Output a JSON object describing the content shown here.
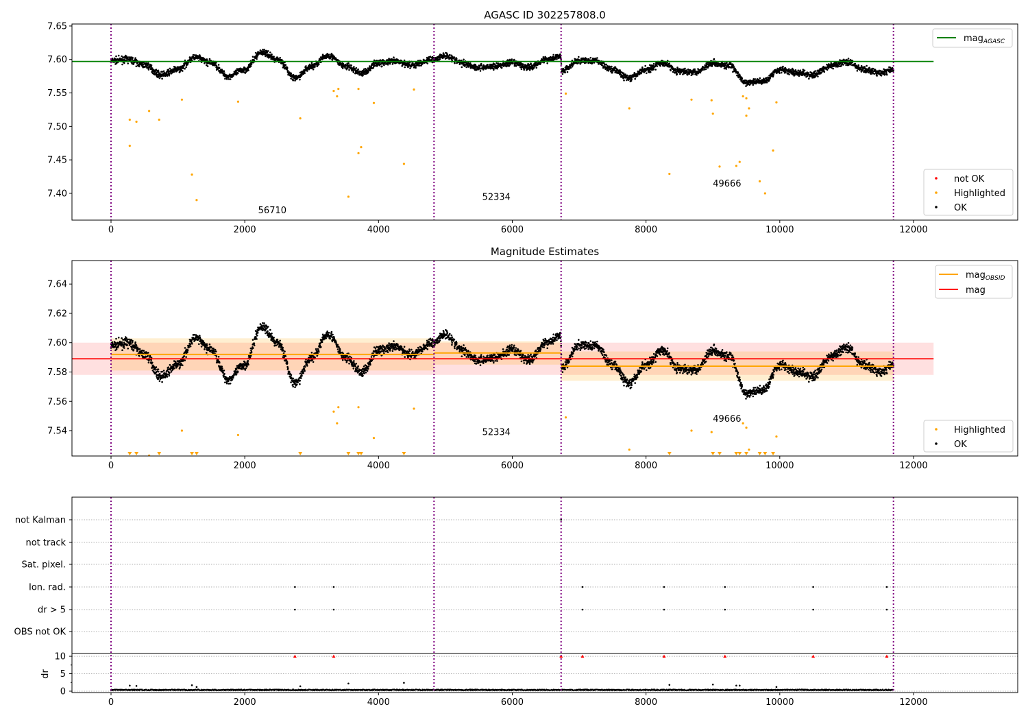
{
  "chart_data": [
    {
      "type": "scatter",
      "title": "AGASC ID 302257808.0",
      "xlim": [
        -584,
        13558
      ],
      "ylim": [
        7.36,
        7.653
      ],
      "xticks": [
        "0",
        "2000",
        "4000",
        "6000",
        "8000",
        "10000",
        "12000"
      ],
      "xtick_values": [
        0,
        2000,
        4000,
        6000,
        8000,
        10000,
        12000
      ],
      "yticks": [
        "7.40",
        "7.45",
        "7.50",
        "7.55",
        "7.60",
        "7.65"
      ],
      "ytick_values": [
        7.4,
        7.45,
        7.5,
        7.55,
        7.6,
        7.65
      ],
      "legend_top": {
        "base": "mag",
        "sub": "AGASC"
      },
      "legend_bottom": [
        "not OK",
        "Highlighted",
        "OK"
      ],
      "mag_agasc": 7.597,
      "mag_agasc_xrange": [
        -584,
        12300
      ]
    },
    {
      "type": "scatter",
      "title": "Magnitude Estimates",
      "xlim": [
        -584,
        13558
      ],
      "ylim": [
        7.5227,
        7.656
      ],
      "xticks": [
        "0",
        "2000",
        "4000",
        "6000",
        "8000",
        "10000",
        "12000"
      ],
      "xtick_values": [
        0,
        2000,
        4000,
        6000,
        8000,
        10000,
        12000
      ],
      "yticks": [
        "7.54",
        "7.56",
        "7.58",
        "7.60",
        "7.62",
        "7.64"
      ],
      "ytick_values": [
        7.54,
        7.56,
        7.58,
        7.6,
        7.62,
        7.64
      ],
      "legend_top": [
        {
          "base": "mag",
          "sub": "OBSID"
        },
        {
          "base": "mag",
          "sub": ""
        }
      ],
      "legend_bottom": [
        "Highlighted",
        "OK"
      ],
      "mag": 7.589,
      "mag_err": 0.011,
      "mag_xrange": [
        -584,
        12300
      ],
      "obsid_mags": [
        {
          "x0": 0,
          "x1": 4830,
          "mag": 7.592,
          "err": 0.011
        },
        {
          "x0": 4830,
          "x1": 6730,
          "mag": 7.593,
          "err": 0.008
        },
        {
          "x0": 6730,
          "x1": 11700,
          "mag": 7.584,
          "err": 0.01
        }
      ]
    },
    {
      "type": "scatter",
      "title": "",
      "xlim": [
        -584,
        13558
      ],
      "flag_labels": [
        "not Kalman",
        "not track",
        "Sat. pixel.",
        "Ion. rad.",
        "dr > 5",
        "OBS not OK"
      ],
      "dr_ylabel": "dr",
      "dr_ylim": [
        -0.4,
        10.8
      ],
      "dr_yticks": [
        "0",
        "5",
        "10"
      ],
      "dr_ytick_values": [
        0,
        5,
        10
      ],
      "xticks": [
        "0",
        "2000",
        "4000",
        "6000",
        "8000",
        "10000",
        "12000"
      ],
      "xtick_values": [
        0,
        2000,
        4000,
        6000,
        8000,
        10000,
        12000
      ],
      "flags": {
        "not Kalman": [
          6730
        ],
        "Ion. rad.": [
          2750,
          3330,
          7050,
          8270,
          9180,
          10500,
          11600
        ],
        "dr > 5": [
          2750,
          3330,
          7050,
          8270,
          9180,
          10500,
          11600
        ]
      },
      "dr_red": [
        2750,
        3330,
        6730,
        7050,
        8270,
        9180,
        10500,
        11600
      ],
      "dr_spikes": [
        [
          280,
          1.6
        ],
        [
          380,
          1.5
        ],
        [
          1210,
          1.7
        ],
        [
          1280,
          1.2
        ],
        [
          2830,
          1.4
        ],
        [
          3550,
          2.2
        ],
        [
          4380,
          2.4
        ],
        [
          8350,
          1.8
        ],
        [
          9000,
          1.9
        ],
        [
          9350,
          1.6
        ],
        [
          9400,
          1.6
        ],
        [
          9950,
          1.2
        ]
      ]
    }
  ],
  "obsid_boundaries": [
    0,
    4830,
    6730,
    11700
  ],
  "obsid_labels": [
    {
      "text": "56710",
      "x": 2200,
      "y_top": 7.37,
      "y_mid": 7.527
    },
    {
      "text": "52334",
      "x": 5550,
      "y_top": 7.39,
      "y_mid": 7.537
    },
    {
      "text": "49666",
      "x": 9000,
      "y_top": 7.41,
      "y_mid": 7.546
    }
  ],
  "trend": [
    [
      0,
      7.598
    ],
    [
      250,
      7.6
    ],
    [
      500,
      7.592
    ],
    [
      750,
      7.577
    ],
    [
      1000,
      7.585
    ],
    [
      1250,
      7.603
    ],
    [
      1500,
      7.595
    ],
    [
      1750,
      7.575
    ],
    [
      2000,
      7.585
    ],
    [
      2250,
      7.611
    ],
    [
      2500,
      7.6
    ],
    [
      2750,
      7.572
    ],
    [
      3000,
      7.59
    ],
    [
      3250,
      7.606
    ],
    [
      3500,
      7.59
    ],
    [
      3750,
      7.58
    ],
    [
      4000,
      7.595
    ],
    [
      4250,
      7.597
    ],
    [
      4500,
      7.592
    ],
    [
      4820,
      7.6
    ],
    [
      5000,
      7.606
    ],
    [
      5250,
      7.595
    ],
    [
      5500,
      7.588
    ],
    [
      5750,
      7.59
    ],
    [
      6000,
      7.595
    ],
    [
      6250,
      7.588
    ],
    [
      6500,
      7.6
    ],
    [
      6720,
      7.605
    ],
    [
      6740,
      7.583
    ],
    [
      7000,
      7.598
    ],
    [
      7250,
      7.598
    ],
    [
      7500,
      7.585
    ],
    [
      7750,
      7.572
    ],
    [
      8000,
      7.585
    ],
    [
      8250,
      7.595
    ],
    [
      8500,
      7.582
    ],
    [
      8750,
      7.582
    ],
    [
      9000,
      7.595
    ],
    [
      9250,
      7.59
    ],
    [
      9500,
      7.565
    ],
    [
      9750,
      7.568
    ],
    [
      10000,
      7.585
    ],
    [
      10250,
      7.58
    ],
    [
      10500,
      7.577
    ],
    [
      10750,
      7.59
    ],
    [
      11000,
      7.597
    ],
    [
      11250,
      7.585
    ],
    [
      11500,
      7.58
    ],
    [
      11700,
      7.585
    ]
  ],
  "highlighted": [
    [
      280,
      7.51
    ],
    [
      280,
      7.471
    ],
    [
      380,
      7.507
    ],
    [
      570,
      7.523
    ],
    [
      720,
      7.51
    ],
    [
      1060,
      7.54
    ],
    [
      1210,
      7.428
    ],
    [
      1280,
      7.39
    ],
    [
      1900,
      7.537
    ],
    [
      2830,
      7.512
    ],
    [
      3330,
      7.553
    ],
    [
      3380,
      7.545
    ],
    [
      3400,
      7.556
    ],
    [
      3550,
      7.395
    ],
    [
      3700,
      7.556
    ],
    [
      3700,
      7.46
    ],
    [
      3740,
      7.469
    ],
    [
      3930,
      7.535
    ],
    [
      4380,
      7.444
    ],
    [
      4530,
      7.555
    ],
    [
      6800,
      7.549
    ],
    [
      7750,
      7.527
    ],
    [
      8350,
      7.429
    ],
    [
      8680,
      7.54
    ],
    [
      8980,
      7.539
    ],
    [
      9000,
      7.519
    ],
    [
      9100,
      7.44
    ],
    [
      9350,
      7.441
    ],
    [
      9400,
      7.447
    ],
    [
      9450,
      7.545
    ],
    [
      9500,
      7.542
    ],
    [
      9500,
      7.516
    ],
    [
      9540,
      7.527
    ],
    [
      9700,
      7.418
    ],
    [
      9780,
      7.4
    ],
    [
      9900,
      7.464
    ],
    [
      9950,
      7.536
    ]
  ],
  "colors": {
    "ok": "#000000",
    "highlighted": "#ffa500",
    "not_ok": "#ff0000",
    "agasc": "#008000",
    "mag": "#ff0000",
    "obsid": "#ffa500",
    "boundary": "#800080"
  }
}
